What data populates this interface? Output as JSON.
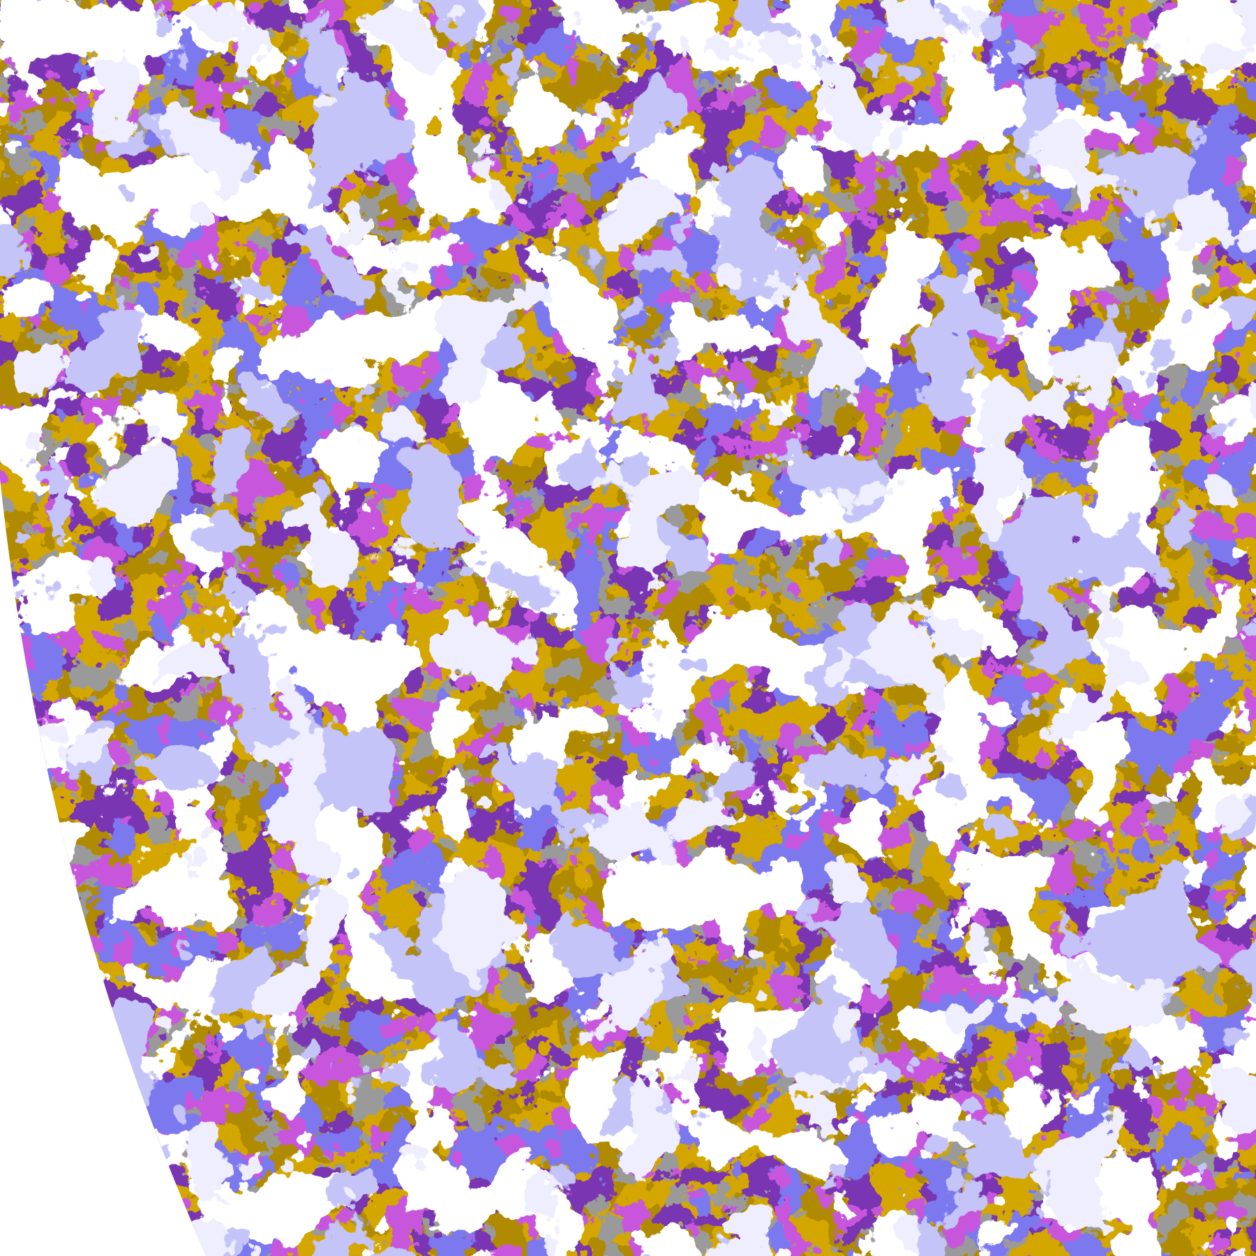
{
  "image": {
    "type": "satellite-cloud-classification",
    "palette": {
      "background": "#ffffff",
      "gold": "#d4a600",
      "dark_gold": "#b08a00",
      "purple": "#7a35b3",
      "violet": "#7b78ee",
      "magenta": "#c757dd",
      "gray": "#9a9a9a",
      "lavender": "#eeeeff",
      "light_blue": "#c4c4f8"
    }
  }
}
